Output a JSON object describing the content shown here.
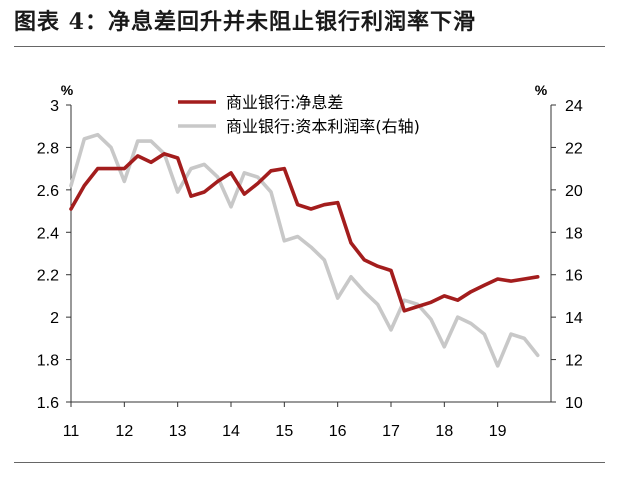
{
  "figure_title": "图表 4：净息差回升并未阻止银行利润率下滑",
  "chart_data": {
    "type": "line",
    "title": "",
    "x_ticks": [
      "11",
      "12",
      "13",
      "14",
      "15",
      "16",
      "17",
      "18",
      "19"
    ],
    "xlim": [
      2011,
      2019.75
    ],
    "y_left": {
      "unit": "%",
      "range": [
        1.6,
        3.0
      ],
      "ticks": [
        "1.6",
        "1.8",
        "2",
        "2.2",
        "2.4",
        "2.6",
        "2.8",
        "3"
      ]
    },
    "y_right": {
      "unit": "%",
      "range": [
        10,
        24
      ],
      "ticks": [
        "10",
        "12",
        "14",
        "16",
        "18",
        "20",
        "22",
        "24"
      ]
    },
    "legend_position": "top-center",
    "grid": false,
    "series": [
      {
        "name": "商业银行:净息差",
        "axis": "left",
        "color": "#a31d1d",
        "x": [
          2011.0,
          2011.25,
          2011.5,
          2011.75,
          2012.0,
          2012.25,
          2012.5,
          2012.75,
          2013.0,
          2013.25,
          2013.5,
          2013.75,
          2014.0,
          2014.25,
          2014.5,
          2014.75,
          2015.0,
          2015.25,
          2015.5,
          2015.75,
          2016.0,
          2016.25,
          2016.5,
          2016.75,
          2017.0,
          2017.25,
          2017.5,
          2017.75,
          2018.0,
          2018.25,
          2018.5,
          2018.75,
          2019.0,
          2019.25,
          2019.5,
          2019.75
        ],
        "values": [
          2.51,
          2.62,
          2.7,
          2.7,
          2.7,
          2.76,
          2.73,
          2.77,
          2.75,
          2.57,
          2.59,
          2.64,
          2.68,
          2.58,
          2.63,
          2.69,
          2.7,
          2.53,
          2.51,
          2.53,
          2.54,
          2.35,
          2.27,
          2.24,
          2.22,
          2.03,
          2.05,
          2.07,
          2.1,
          2.08,
          2.12,
          2.15,
          2.18,
          2.17,
          2.18,
          2.19
        ]
      },
      {
        "name": "商业银行:资本利润率(右轴)",
        "axis": "right",
        "color": "#c8c8c8",
        "x": [
          2011.0,
          2011.25,
          2011.5,
          2011.75,
          2012.0,
          2012.25,
          2012.5,
          2012.75,
          2013.0,
          2013.25,
          2013.5,
          2013.75,
          2014.0,
          2014.25,
          2014.5,
          2014.75,
          2015.0,
          2015.25,
          2015.5,
          2015.75,
          2016.0,
          2016.25,
          2016.5,
          2016.75,
          2017.0,
          2017.25,
          2017.5,
          2017.75,
          2018.0,
          2018.25,
          2018.5,
          2018.75,
          2019.0,
          2019.25,
          2019.5,
          2019.75
        ],
        "values": [
          20.2,
          22.4,
          22.6,
          22.0,
          20.4,
          22.3,
          22.3,
          21.7,
          19.9,
          21.0,
          21.2,
          20.6,
          19.2,
          20.8,
          20.6,
          19.9,
          17.6,
          17.8,
          17.3,
          16.7,
          14.9,
          15.9,
          15.2,
          14.6,
          13.4,
          14.8,
          14.6,
          13.9,
          12.6,
          14.0,
          13.7,
          13.2,
          11.7,
          13.2,
          13.0,
          12.2
        ]
      }
    ]
  }
}
